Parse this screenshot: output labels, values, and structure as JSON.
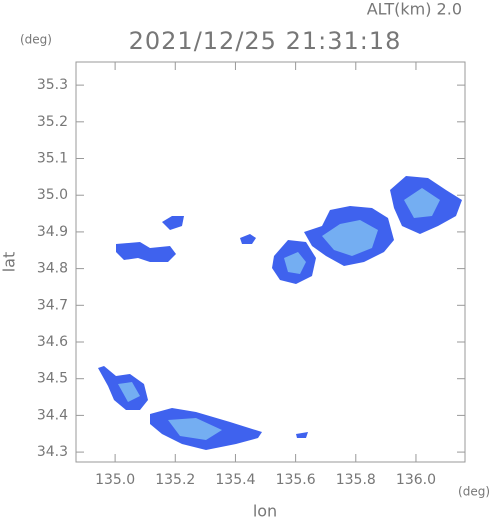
{
  "chart_data": {
    "type": "map",
    "title": "2021/12/25 21:31:18",
    "altitude_label": "ALT(km) 2.0",
    "y_unit": "(deg)",
    "x_unit": "(deg)",
    "ylabel": "lat",
    "xlabel": "lon",
    "xlim": [
      134.87,
      136.163
    ],
    "ylim": [
      34.273,
      35.363
    ],
    "xticks": [
      {
        "value": 135,
        "label": "135.0"
      },
      135.2,
      135.4,
      135.6,
      135.8,
      {
        "value": 136,
        "label": "136.0"
      }
    ],
    "yticks": [
      34.3,
      34.4,
      34.5,
      34.6,
      34.7,
      34.8,
      34.9,
      {
        "value": 35,
        "label": "35.0"
      },
      35.1,
      35.2,
      35.3
    ]
  }
}
